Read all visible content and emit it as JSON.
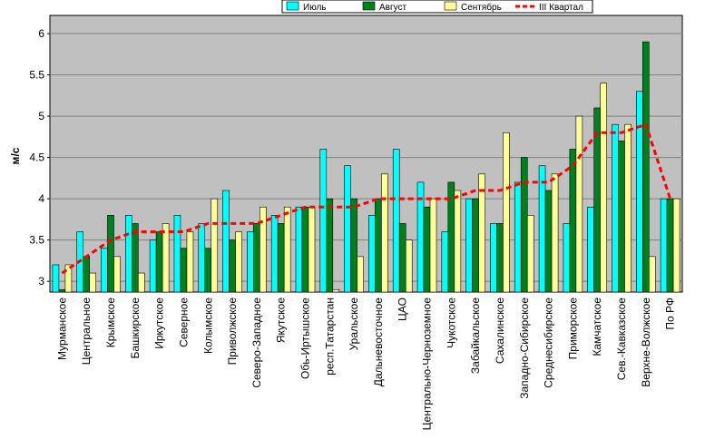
{
  "chart_data": {
    "type": "bar",
    "y_label": "м/с",
    "categories": [
      "Мурманское",
      "Центральное",
      "Крымское",
      "Башкирское",
      "Иркутское",
      "Северное",
      "Колымское",
      "Приволжское",
      "Северо-Западное",
      "Якутское",
      "Обь-Иртышское",
      "респ.Татарстан",
      "Уральское",
      "Дальневосточное",
      "ЦАО",
      "Центрально-Черноземное",
      "Чукотское",
      "Забайкальское",
      "Сахалинское",
      "Западно-Сибирское",
      "Среднесибирское",
      "Приморское",
      "Камчатское",
      "Сев.-Кавказское",
      "Верхне-Волжское",
      "По РФ"
    ],
    "series": [
      {
        "name": "Июль",
        "color": "#00ffff",
        "values": [
          3.2,
          3.6,
          3.4,
          3.8,
          3.5,
          3.8,
          3.7,
          4.1,
          3.6,
          3.8,
          3.9,
          4.6,
          4.4,
          3.8,
          4.6,
          4.2,
          3.6,
          4.0,
          3.7,
          4.2,
          4.4,
          3.7,
          3.9,
          4.9,
          5.3,
          4.0
        ]
      },
      {
        "name": "Август",
        "color": "#007f1f",
        "values": [
          2.9,
          3.3,
          3.8,
          3.7,
          3.6,
          3.4,
          3.4,
          3.5,
          3.7,
          3.7,
          3.9,
          4.0,
          4.0,
          4.0,
          3.7,
          3.9,
          4.2,
          4.0,
          3.7,
          4.5,
          4.1,
          4.6,
          5.1,
          4.7,
          5.9,
          4.0
        ]
      },
      {
        "name": "Сентябрь",
        "color": "#ffff99",
        "values": [
          3.2,
          3.1,
          3.3,
          3.1,
          3.7,
          3.6,
          4.0,
          3.6,
          3.9,
          3.9,
          3.9,
          2.9,
          3.3,
          4.3,
          3.5,
          4.0,
          4.1,
          4.3,
          4.8,
          3.8,
          4.3,
          5.0,
          5.4,
          4.9,
          3.3,
          4.0
        ]
      },
      {
        "name": "III Квартал",
        "color": "#ff0000",
        "line": true,
        "values": [
          3.1,
          3.3,
          3.5,
          3.6,
          3.6,
          3.6,
          3.7,
          3.7,
          3.7,
          3.8,
          3.9,
          3.9,
          3.9,
          4.0,
          4.0,
          4.0,
          4.0,
          4.1,
          4.1,
          4.2,
          4.2,
          4.4,
          4.8,
          4.8,
          4.9,
          4.0
        ]
      }
    ],
    "ylim": [
      2.87,
      6.22
    ],
    "yticks": [
      3,
      3.5,
      4,
      4.5,
      5,
      5.5,
      6
    ],
    "grid": true
  }
}
